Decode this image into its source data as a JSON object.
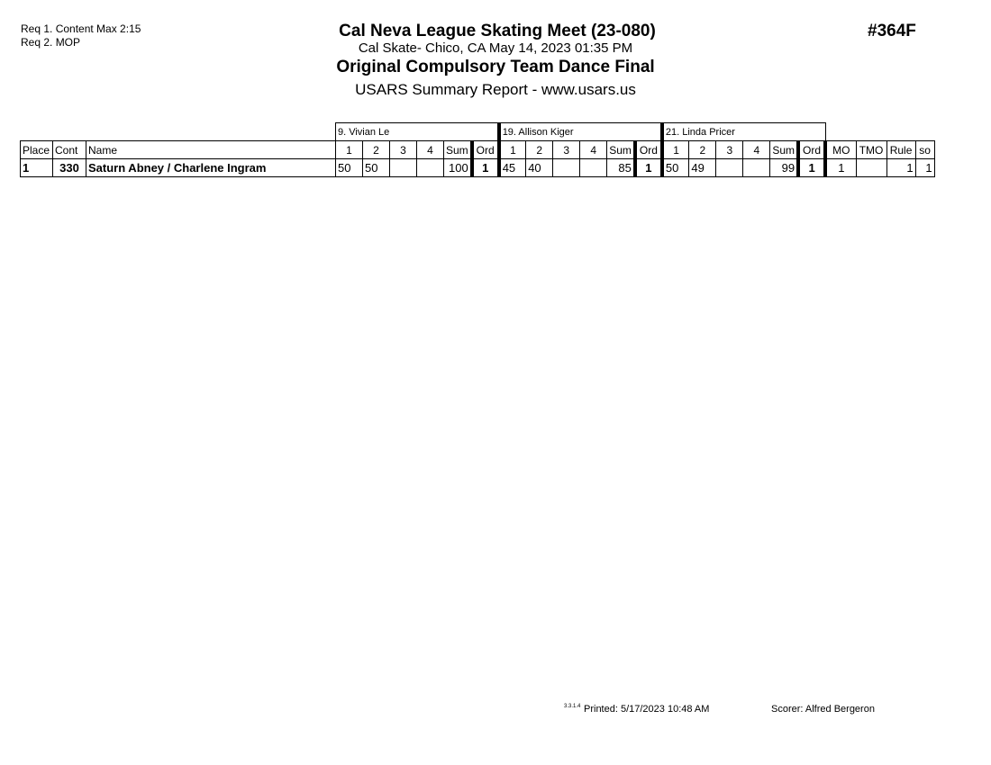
{
  "requirements": [
    "Req  1.  Content Max 2:15",
    "Req  2.  MOP"
  ],
  "header": {
    "meet": "Cal Neva League Skating Meet (23-080)",
    "location": "Cal Skate- Chico, CA  May 14, 2023  01:35 PM",
    "event": "Original Compulsory Team Dance Final",
    "report": "USARS Summary Report - www.usars.us",
    "event_number": "#364F"
  },
  "judges": [
    "9.  Vivian Le",
    "19.  Allison Kiger",
    "21.  Linda Pricer"
  ],
  "columns": {
    "place": "Place",
    "cont": "Cont",
    "name": "Name",
    "judge_cols": [
      "1",
      "2",
      "3",
      "4",
      "Sum",
      "Ord"
    ],
    "extra": [
      "MO",
      "TMO",
      "Rule",
      "so"
    ]
  },
  "rows": [
    {
      "place": "1",
      "cont": "330",
      "name": "Saturn Abney / Charlene Ingram",
      "judges": [
        [
          "50",
          "50",
          "",
          "",
          "100",
          "1"
        ],
        [
          "45",
          "40",
          "",
          "",
          "85",
          "1"
        ],
        [
          "50",
          "49",
          "",
          "",
          "99",
          "1"
        ]
      ],
      "extra": [
        "1",
        "",
        "1",
        "1"
      ]
    }
  ],
  "footer": {
    "version": "3.3.1.4",
    "printed": "Printed:  5/17/2023  10:48 AM",
    "scorer": "Scorer:   Alfred Bergeron"
  }
}
